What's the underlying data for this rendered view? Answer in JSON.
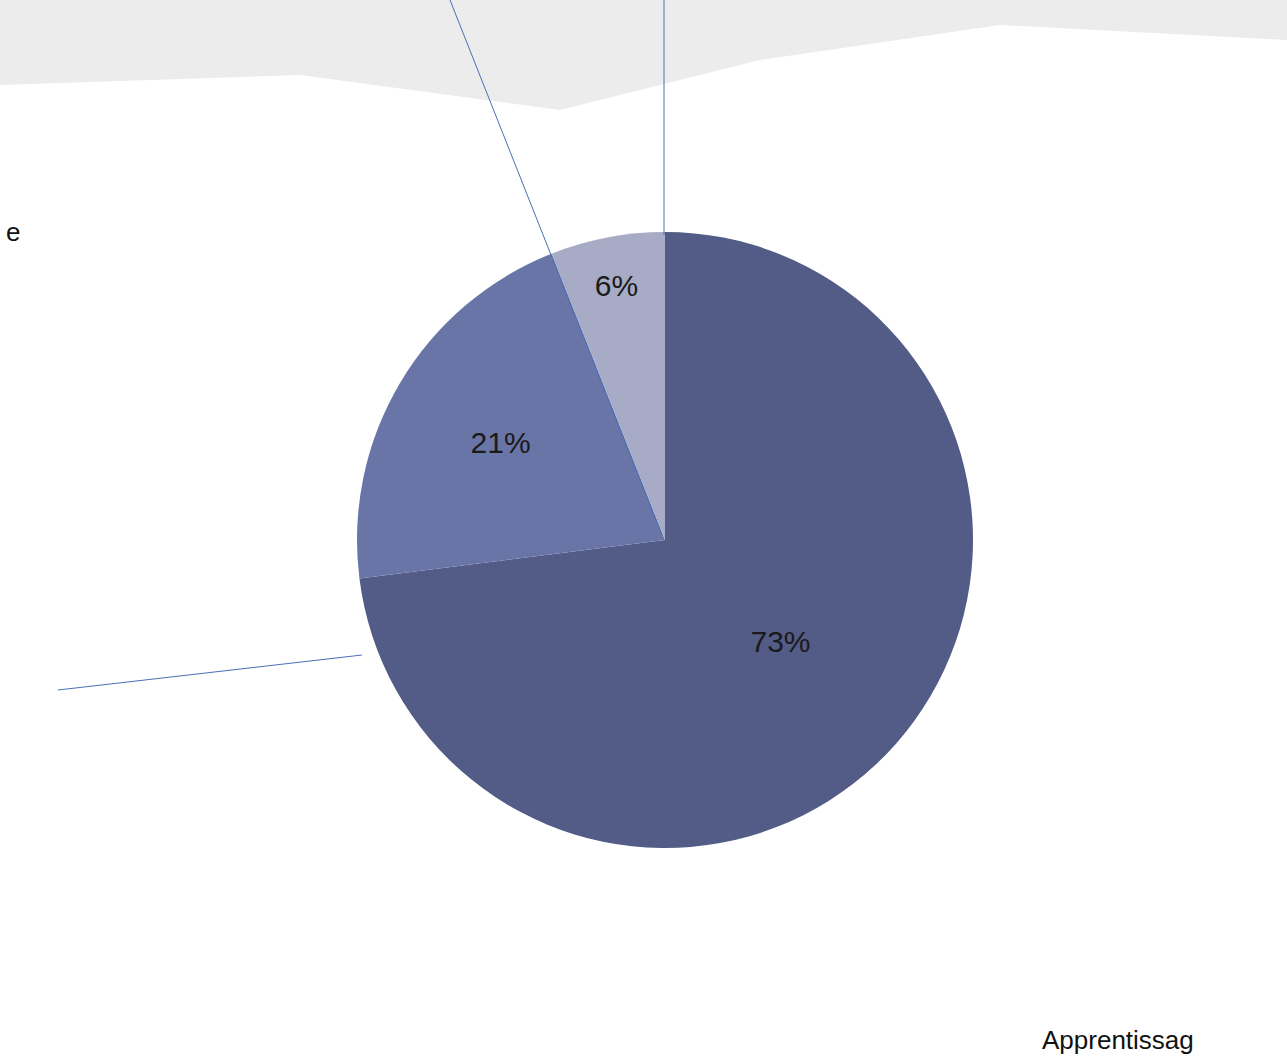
{
  "chart_data": {
    "type": "pie",
    "values": [
      73,
      21,
      6
    ],
    "value_labels": [
      "73%",
      "21%",
      "6%"
    ],
    "colors": [
      "#525c86",
      "#6a75a7",
      "#a8abc6"
    ],
    "data_labels": true,
    "annotations": [
      "e",
      "Apprentissag"
    ]
  }
}
